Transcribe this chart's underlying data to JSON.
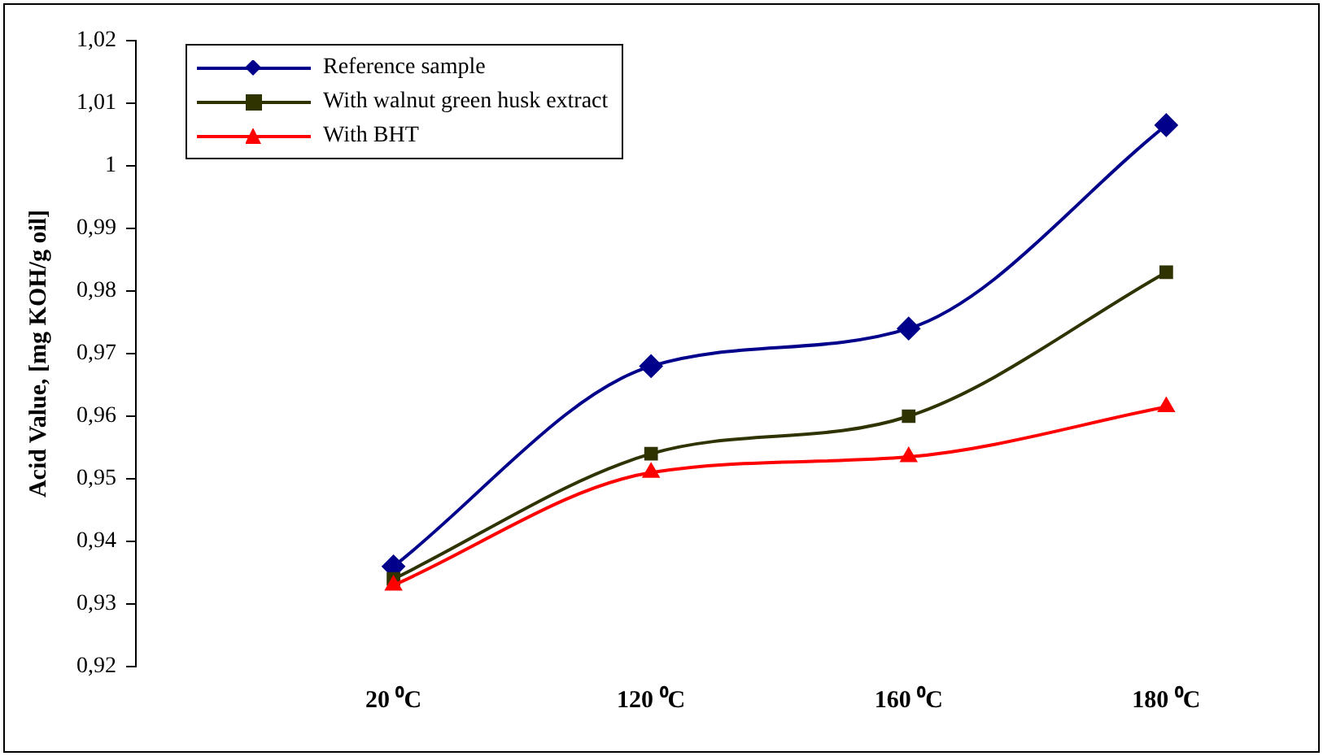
{
  "chart_data": {
    "type": "line",
    "ylabel": "Acid Value, [mg KOH/g oil]",
    "categories": [
      "20 ⁰C",
      "120 ⁰C",
      "160 ⁰C",
      "180 ⁰C"
    ],
    "series": [
      {
        "name": "Reference sample",
        "color": "#00008b",
        "marker": "diamond",
        "values": [
          0.936,
          0.968,
          0.974,
          1.0065
        ]
      },
      {
        "name": "With walnut green husk extract",
        "color": "#2f3300",
        "marker": "square",
        "values": [
          0.934,
          0.954,
          0.96,
          0.983
        ]
      },
      {
        "name": "With BHT",
        "color": "#ff0000",
        "marker": "triangle",
        "values": [
          0.933,
          0.951,
          0.9535,
          0.9615
        ]
      }
    ],
    "ylim": [
      0.92,
      1.02
    ],
    "yticks": [
      {
        "value": 0.92,
        "label": "0,92"
      },
      {
        "value": 0.93,
        "label": "0,93"
      },
      {
        "value": 0.94,
        "label": "0,94"
      },
      {
        "value": 0.95,
        "label": "0,95"
      },
      {
        "value": 0.96,
        "label": "0,96"
      },
      {
        "value": 0.97,
        "label": "0,97"
      },
      {
        "value": 0.98,
        "label": "0,98"
      },
      {
        "value": 0.99,
        "label": "0,99"
      },
      {
        "value": 1,
        "label": "1"
      },
      {
        "value": 1.01,
        "label": "1,01"
      },
      {
        "value": 1.02,
        "label": "1,02"
      }
    ],
    "grid": false,
    "legend": "top left"
  }
}
